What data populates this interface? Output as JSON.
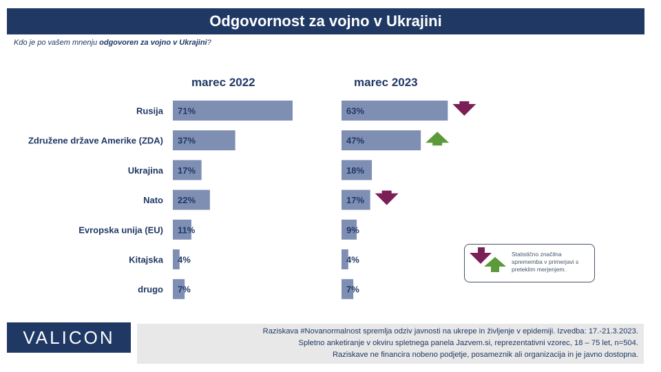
{
  "title": "Odgovornost za vojno v Ukrajini",
  "subtitle": {
    "prefix": "Kdo je po vašem mnenju ",
    "emphasis": "odgovoren za vojno v Ukrajini",
    "suffix": "?"
  },
  "colors": {
    "navy": "#1f3864",
    "bar": "#7f8fb4",
    "arrow_down": "#7b1f57",
    "arrow_up": "#5b9a3b"
  },
  "legend_text": "Statistično značilna sprememba v primerjavi s preteklim merjenjem.",
  "brand": "VALICON",
  "footer_lines": [
    "Raziskava #Novanormalnost spremlja odziv javnosti na ukrepe in življenje v epidemiji. Izvedba: 17.-21.3.2023.",
    "Spletno anketiranje v okviru spletnega panela Jazvem.si, reprezentativni vzorec, 18 – 75 let, n=504.",
    "Raziskave ne financira nobeno podjetje, posameznik ali organizacija in je javno dostopna."
  ],
  "chart_data": {
    "type": "bar",
    "orientation": "horizontal",
    "categories": [
      "Rusija",
      "Združene države Amerike (ZDA)",
      "Ukrajina",
      "Nato",
      "Evropska unija (EU)",
      "Kitajska",
      "drugo"
    ],
    "series": [
      {
        "name": "marec 2022",
        "values": [
          71,
          37,
          17,
          22,
          11,
          4,
          7
        ]
      },
      {
        "name": "marec 2023",
        "values": [
          63,
          47,
          18,
          17,
          9,
          4,
          7
        ]
      }
    ],
    "value_suffix": "%",
    "xlim": [
      0,
      100
    ],
    "significant_change_2023": [
      "down",
      "up",
      null,
      "down",
      null,
      null,
      null
    ]
  }
}
